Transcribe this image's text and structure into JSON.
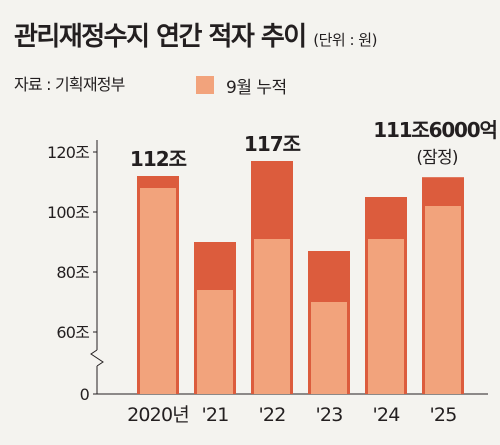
{
  "header": {
    "title": "관리재정수지 연간 적자 추이",
    "unit": "(단위 : 원)",
    "source": "자료 : 기획재정부"
  },
  "legend": {
    "inner_label": "9월 누적"
  },
  "colors": {
    "total_bar": "#dc5c3d",
    "sep_bar": "#f2a37c",
    "background": "#f4f3ef"
  },
  "chart_data": {
    "type": "bar",
    "categories": [
      "2020년",
      "'21",
      "'22",
      "'23",
      "'24",
      "'25"
    ],
    "series": [
      {
        "name": "",
        "values": [
          112,
          90,
          117,
          87,
          105,
          111.6
        ]
      },
      {
        "name": "9월 누적",
        "values": [
          108,
          74,
          91,
          70,
          91,
          102
        ]
      }
    ],
    "y_ticks": [
      {
        "value": 0,
        "label": "0"
      },
      {
        "value": 60,
        "label": "60조"
      },
      {
        "value": 80,
        "label": "80조"
      },
      {
        "value": 100,
        "label": "100조"
      },
      {
        "value": 120,
        "label": "120조"
      }
    ],
    "ylim": [
      60,
      120
    ],
    "axis_break": true,
    "annotations": [
      {
        "index": 0,
        "text": "112조"
      },
      {
        "index": 2,
        "text": "117조"
      },
      {
        "index": 5,
        "text": "111조6000억",
        "note": "(잠정)"
      }
    ],
    "grid": false
  }
}
